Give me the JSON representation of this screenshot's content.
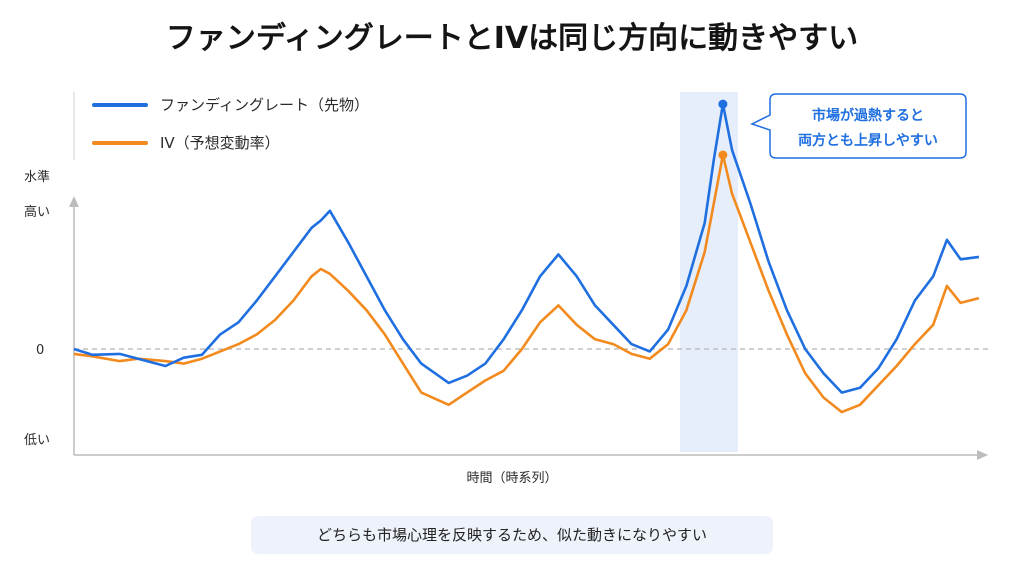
{
  "title": "ファンディングレートとIVは同じ方向に動きやすい",
  "legend": {
    "items": [
      {
        "label": "ファンディングレート（先物）",
        "color": "#1f6fe0"
      },
      {
        "label": "IV（予想変動率）",
        "color": "#f28a1e"
      }
    ]
  },
  "axis": {
    "y_title": "水準",
    "y_high": "高い",
    "y_zero": "0",
    "y_low": "低い",
    "x_title": "時間（時系列）"
  },
  "callout": {
    "line1": "市場が過熱すると",
    "line2": "両方とも上昇しやすい"
  },
  "footer": "どちらも市場心理を反映するため、似た動きになりやすい",
  "colors": {
    "funding": "#1f6fe0",
    "iv": "#f28a1e",
    "highlight": "#e6eefb",
    "zero_line": "#b5b5b5"
  },
  "chart_data": {
    "type": "line",
    "title": "ファンディングレートとIVは同じ方向に動きやすい",
    "xlabel": "時間（時系列）",
    "ylabel": "水準",
    "yticks": [
      "高い",
      "0",
      "低い"
    ],
    "legend": "top-left",
    "grid": false,
    "zero_line": "dashed",
    "highlight_region": {
      "x_range": [
        0.66,
        0.73
      ],
      "label": "市場が過熱すると両方とも上昇しやすい"
    },
    "series": [
      {
        "name": "ファンディングレート（先物）",
        "color": "#1f6fe0",
        "points": [
          [
            0,
            0.0
          ],
          [
            0.02,
            -0.12
          ],
          [
            0.05,
            -0.1
          ],
          [
            0.07,
            -0.2
          ],
          [
            0.1,
            -0.35
          ],
          [
            0.12,
            -0.18
          ],
          [
            0.14,
            -0.12
          ],
          [
            0.16,
            0.3
          ],
          [
            0.18,
            0.55
          ],
          [
            0.2,
            1.0
          ],
          [
            0.22,
            1.5
          ],
          [
            0.24,
            2.0
          ],
          [
            0.26,
            2.5
          ],
          [
            0.27,
            2.65
          ],
          [
            0.28,
            2.85
          ],
          [
            0.3,
            2.2
          ],
          [
            0.32,
            1.5
          ],
          [
            0.34,
            0.8
          ],
          [
            0.36,
            0.2
          ],
          [
            0.38,
            -0.3
          ],
          [
            0.41,
            -0.7
          ],
          [
            0.43,
            -0.55
          ],
          [
            0.45,
            -0.3
          ],
          [
            0.47,
            0.2
          ],
          [
            0.49,
            0.8
          ],
          [
            0.51,
            1.5
          ],
          [
            0.53,
            1.95
          ],
          [
            0.55,
            1.5
          ],
          [
            0.57,
            0.9
          ],
          [
            0.59,
            0.5
          ],
          [
            0.61,
            0.1
          ],
          [
            0.63,
            -0.05
          ],
          [
            0.65,
            0.4
          ],
          [
            0.67,
            1.3
          ],
          [
            0.69,
            2.6
          ],
          [
            0.7,
            3.9
          ],
          [
            0.71,
            5.05
          ],
          [
            0.72,
            4.1
          ],
          [
            0.74,
            3.0
          ],
          [
            0.76,
            1.8
          ],
          [
            0.78,
            0.8
          ],
          [
            0.8,
            0.0
          ],
          [
            0.82,
            -0.5
          ],
          [
            0.84,
            -0.9
          ],
          [
            0.86,
            -0.8
          ],
          [
            0.88,
            -0.4
          ],
          [
            0.9,
            0.2
          ],
          [
            0.92,
            1.0
          ],
          [
            0.94,
            1.5
          ],
          [
            0.955,
            2.25
          ],
          [
            0.97,
            1.85
          ],
          [
            0.99,
            1.9
          ]
        ]
      },
      {
        "name": "IV（予想変動率）",
        "color": "#f28a1e",
        "points": [
          [
            0,
            -0.1
          ],
          [
            0.02,
            -0.15
          ],
          [
            0.05,
            -0.25
          ],
          [
            0.07,
            -0.2
          ],
          [
            0.1,
            -0.25
          ],
          [
            0.12,
            -0.3
          ],
          [
            0.14,
            -0.2
          ],
          [
            0.16,
            -0.05
          ],
          [
            0.18,
            0.1
          ],
          [
            0.2,
            0.3
          ],
          [
            0.22,
            0.6
          ],
          [
            0.24,
            1.0
          ],
          [
            0.26,
            1.5
          ],
          [
            0.27,
            1.65
          ],
          [
            0.28,
            1.55
          ],
          [
            0.3,
            1.2
          ],
          [
            0.32,
            0.8
          ],
          [
            0.34,
            0.3
          ],
          [
            0.36,
            -0.3
          ],
          [
            0.38,
            -0.9
          ],
          [
            0.41,
            -1.15
          ],
          [
            0.43,
            -0.9
          ],
          [
            0.45,
            -0.65
          ],
          [
            0.47,
            -0.45
          ],
          [
            0.49,
            0.0
          ],
          [
            0.51,
            0.55
          ],
          [
            0.53,
            0.9
          ],
          [
            0.55,
            0.5
          ],
          [
            0.57,
            0.2
          ],
          [
            0.59,
            0.1
          ],
          [
            0.61,
            -0.1
          ],
          [
            0.63,
            -0.2
          ],
          [
            0.65,
            0.1
          ],
          [
            0.67,
            0.8
          ],
          [
            0.69,
            2.0
          ],
          [
            0.7,
            3.0
          ],
          [
            0.71,
            4.0
          ],
          [
            0.72,
            3.2
          ],
          [
            0.74,
            2.2
          ],
          [
            0.76,
            1.2
          ],
          [
            0.78,
            0.3
          ],
          [
            0.8,
            -0.5
          ],
          [
            0.82,
            -1.0
          ],
          [
            0.84,
            -1.3
          ],
          [
            0.86,
            -1.15
          ],
          [
            0.88,
            -0.75
          ],
          [
            0.9,
            -0.35
          ],
          [
            0.92,
            0.1
          ],
          [
            0.94,
            0.5
          ],
          [
            0.955,
            1.3
          ],
          [
            0.97,
            0.95
          ],
          [
            0.99,
            1.05
          ]
        ]
      }
    ]
  }
}
